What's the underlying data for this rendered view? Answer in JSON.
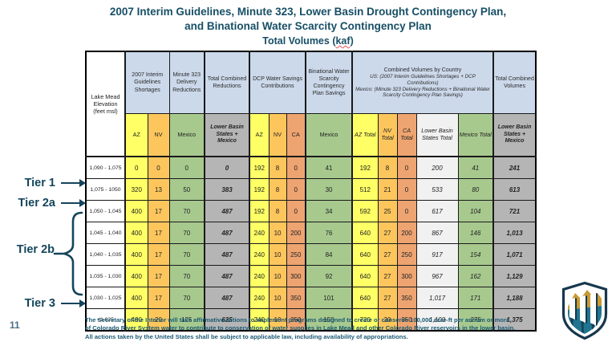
{
  "page": {
    "number": "11"
  },
  "title": {
    "line1": "2007 Interim Guidelines, Minute 323, Lower Basin Drought Contingency Plan,",
    "line2": "and Binational Water Scarcity Contingency Plan",
    "subtitle_prefix": "Total Volumes (",
    "subtitle_kaf": "kaf",
    "subtitle_suffix": ")"
  },
  "tiers": {
    "tier1": "Tier 1",
    "tier2a": "Tier 2a",
    "tier2b": "Tier 2b",
    "tier3": "Tier 3"
  },
  "table": {
    "row_header_label": "Lake Mead Elevation (feet msl)",
    "groups": {
      "interim": "2007 Interim Guidelines Shortages",
      "minute323": "Minute 323 Delivery Reductions",
      "total_reductions": "Total Combined Reductions",
      "dcp": "DCP Water Savings Contributions",
      "binational": "Binational Water Scarcity Contingency Plan Savings",
      "combined_title": "Combined Volumes by Country",
      "combined_us_note": "US: (2007 Interim Guidelines Shortages + DCP Contributions)",
      "combined_mexico_note": "Mexico: (Minute 323 Delivery Reductions + Binational Water Scarcity Contingency Plan Savings)",
      "total_volumes": "Total Combined Volumes"
    },
    "subheaders": [
      "AZ",
      "NV",
      "Mexico",
      "Lower Basin States + Mexico",
      "AZ",
      "NV",
      "CA",
      "Mexico",
      "AZ Total",
      "NV Total",
      "CA Total",
      "Lower Basin States Total",
      "Mexico Total",
      "Lower Basin States + Mexico"
    ],
    "rows": [
      {
        "elevation": "1,090 - 1,075",
        "values": [
          "0",
          "0",
          "0",
          "0",
          "192",
          "8",
          "0",
          "41",
          "192",
          "8",
          "0",
          "200",
          "41",
          "241"
        ]
      },
      {
        "elevation": "1,075 - 1050",
        "values": [
          "320",
          "13",
          "50",
          "383",
          "192",
          "8",
          "0",
          "30",
          "512",
          "21",
          "0",
          "533",
          "80",
          "613"
        ]
      },
      {
        "elevation": "1,050 - 1,045",
        "values": [
          "400",
          "17",
          "70",
          "487",
          "192",
          "8",
          "0",
          "34",
          "592",
          "25",
          "0",
          "617",
          "104",
          "721"
        ]
      },
      {
        "elevation": "1,045 - 1,040",
        "values": [
          "400",
          "17",
          "70",
          "487",
          "240",
          "10",
          "200",
          "76",
          "640",
          "27",
          "200",
          "867",
          "146",
          "1,013"
        ]
      },
      {
        "elevation": "1,040 - 1,035",
        "values": [
          "400",
          "17",
          "70",
          "487",
          "240",
          "10",
          "250",
          "84",
          "640",
          "27",
          "250",
          "917",
          "154",
          "1,071"
        ]
      },
      {
        "elevation": "1,035 - 1,030",
        "values": [
          "400",
          "17",
          "70",
          "487",
          "240",
          "10",
          "300",
          "92",
          "640",
          "27",
          "300",
          "967",
          "162",
          "1,129"
        ]
      },
      {
        "elevation": "1,030 - 1,025",
        "values": [
          "400",
          "17",
          "70",
          "487",
          "240",
          "10",
          "350",
          "101",
          "640",
          "27",
          "350",
          "1,017",
          "171",
          "1,188"
        ]
      },
      {
        "elevation": "<1,025",
        "values": [
          "480",
          "20",
          "125",
          "625",
          "240",
          "10",
          "350",
          "150",
          "720",
          "30",
          "350",
          "1,100",
          "275",
          "1,375"
        ]
      }
    ]
  },
  "footer": {
    "lines": [
      "The Secretary of the Interior will take affirmative actions to implement programs designed to create or conserve 100,000 acre-ft per annum or more",
      "of Colorado River System water to contribute to conservation of water supplies in Lake Mead and other Colorado River reservoirs in the lower basin.",
      "All actions taken by the United States shall be subject to applicable law, including availability of appropriations."
    ]
  },
  "icons": {
    "logo": "bureau-of-reclamation-shield-icon"
  },
  "colors": {
    "title_teal": "#174f66",
    "tier_teal": "#14455c",
    "header_blue": "#ccd9eb",
    "az_yellow": "#ffff66",
    "nv_orange": "#fcc65d",
    "ca_salmon": "#eda471",
    "mexico_green": "#a7c98e",
    "total_gray": "#b5b5b5",
    "states_total_lightgray": "#f1f1f1"
  }
}
